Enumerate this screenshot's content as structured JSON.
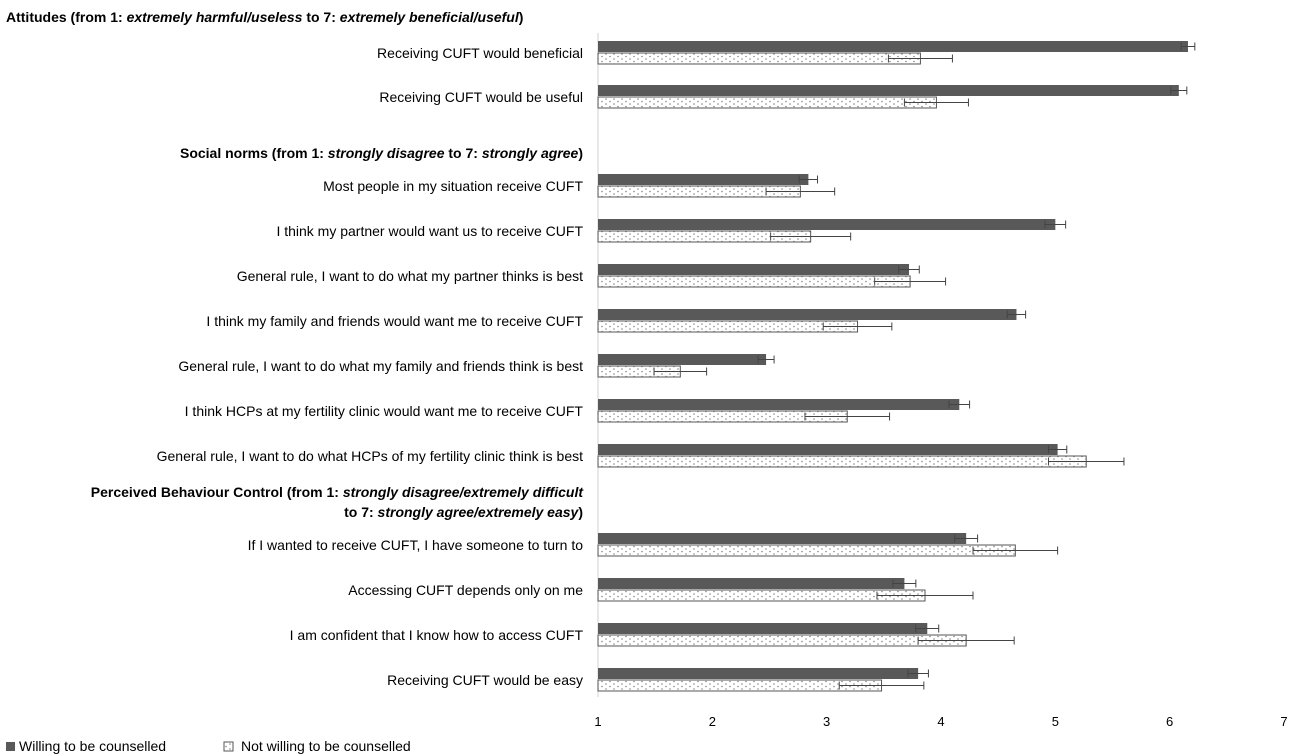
{
  "chart_data": {
    "type": "bar",
    "orientation": "horizontal",
    "xlim": [
      1,
      7
    ],
    "x_ticks": [
      "1",
      "2",
      "3",
      "4",
      "5",
      "6",
      "7"
    ],
    "grid": false,
    "legend_position": "bottom-left",
    "colors": {
      "willing": "#595959",
      "not_willing": "#ffffff",
      "dots": "#888888"
    },
    "series": [
      {
        "name": "Willing to be counselled",
        "fill": "solid"
      },
      {
        "name": "Not willing to be counselled",
        "fill": "dotted"
      }
    ],
    "sections": [
      {
        "title": [
          "Attitudes (from 1: ",
          "extremely harmful/useless",
          " to 7: ",
          "extremely beneficial/useful",
          ")"
        ],
        "items": [
          {
            "label": "Receiving CUFT would beneficial",
            "willing": 6.16,
            "willing_err": 0.06,
            "not_willing": 3.82,
            "not_willing_err": 0.28
          },
          {
            "label": "Receiving CUFT would be useful",
            "willing": 6.08,
            "willing_err": 0.07,
            "not_willing": 3.96,
            "not_willing_err": 0.28
          }
        ]
      },
      {
        "title": [
          "Social norms (from 1: ",
          "strongly disagree",
          " to 7: ",
          "strongly agree",
          ")"
        ],
        "items": [
          {
            "label": "Most people in my situation receive CUFT",
            "willing": 2.84,
            "willing_err": 0.08,
            "not_willing": 2.77,
            "not_willing_err": 0.3
          },
          {
            "label": "I think my partner would want us to receive CUFT",
            "willing": 5.0,
            "willing_err": 0.09,
            "not_willing": 2.86,
            "not_willing_err": 0.35
          },
          {
            "label": "General rule, I want to do what my partner thinks is best",
            "willing": 3.72,
            "willing_err": 0.09,
            "not_willing": 3.73,
            "not_willing_err": 0.31
          },
          {
            "label": "I think my family and friends would want me to receive CUFT",
            "willing": 4.66,
            "willing_err": 0.08,
            "not_willing": 3.27,
            "not_willing_err": 0.3
          },
          {
            "label": "General rule, I want to do what my family and friends think is best",
            "willing": 2.47,
            "willing_err": 0.07,
            "not_willing": 1.72,
            "not_willing_err": 0.23
          },
          {
            "label": "I think HCPs at my fertility clinic would want me to receive CUFT",
            "willing": 4.16,
            "willing_err": 0.09,
            "not_willing": 3.18,
            "not_willing_err": 0.37
          },
          {
            "label": "General rule, I want to do what HCPs of my fertility clinic think is best",
            "willing": 5.02,
            "willing_err": 0.08,
            "not_willing": 5.27,
            "not_willing_err": 0.33
          }
        ]
      },
      {
        "title": [
          "Perceived Behaviour Control (from 1: ",
          "strongly disagree/extremely difficult",
          "\nto 7: ",
          "strongly agree/extremely easy",
          ")"
        ],
        "items": [
          {
            "label": "If I wanted to receive CUFT, I have someone to turn to",
            "willing": 4.22,
            "willing_err": 0.1,
            "not_willing": 4.65,
            "not_willing_err": 0.37
          },
          {
            "label": "Accessing CUFT depends only on me",
            "willing": 3.68,
            "willing_err": 0.1,
            "not_willing": 3.86,
            "not_willing_err": 0.42
          },
          {
            "label": "I am confident that I know how to access CUFT",
            "willing": 3.88,
            "willing_err": 0.1,
            "not_willing": 4.22,
            "not_willing_err": 0.42
          },
          {
            "label": "Receiving CUFT would be easy",
            "willing": 3.8,
            "willing_err": 0.09,
            "not_willing": 3.48,
            "not_willing_err": 0.37
          }
        ]
      }
    ]
  }
}
